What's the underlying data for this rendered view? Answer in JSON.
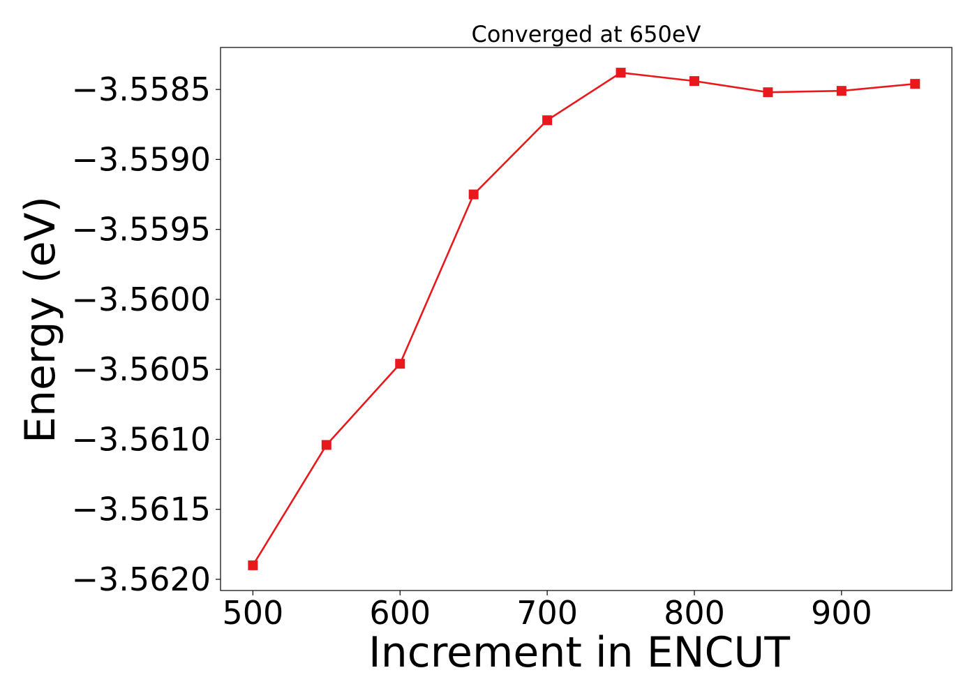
{
  "chart_data": {
    "type": "line",
    "title": "Converged at 650eV",
    "xlabel": "Increment in ENCUT",
    "ylabel": "Energy (eV)",
    "xlim": [
      478,
      975
    ],
    "ylim": [
      -3.56208,
      -3.5582
    ],
    "xticks": [
      500,
      600,
      700,
      800,
      900
    ],
    "xtick_labels": [
      "500",
      "600",
      "700",
      "800",
      "900"
    ],
    "yticks": [
      -3.562,
      -3.5615,
      -3.561,
      -3.5605,
      -3.56,
      -3.5595,
      -3.559,
      -3.5585
    ],
    "ytick_labels": [
      "−3.5620",
      "−3.5615",
      "−3.5610",
      "−3.5605",
      "−3.5600",
      "−3.5595",
      "−3.5590",
      "−3.5585"
    ],
    "grid": false,
    "series": [
      {
        "color": "#e8191c",
        "marker": "square",
        "x": [
          500,
          550,
          600,
          650,
          700,
          750,
          800,
          850,
          900,
          950
        ],
        "y": [
          -3.5619,
          -3.56104,
          -3.56046,
          -3.55925,
          -3.55872,
          -3.55838,
          -3.55844,
          -3.55852,
          -3.55851,
          -3.55846
        ]
      }
    ]
  }
}
